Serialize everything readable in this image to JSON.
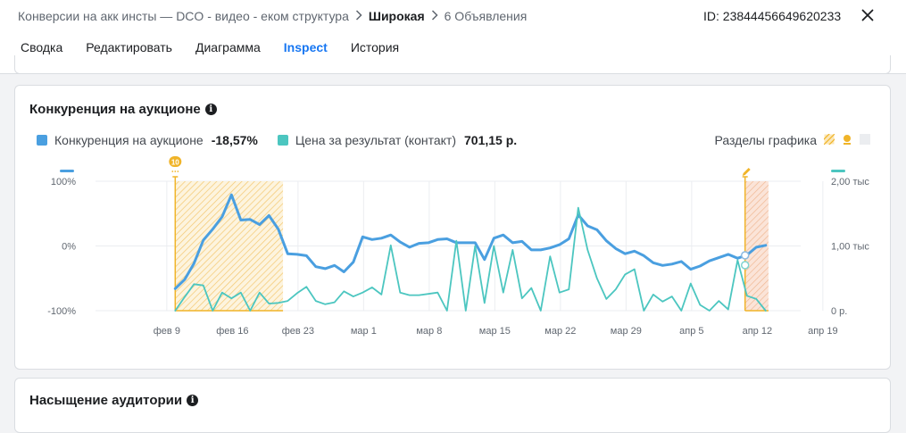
{
  "header": {
    "breadcrumb": {
      "campaign": "Конверсии на акк инсты — DCO - видео - еком структура",
      "adset": "Широкая",
      "ads": "6 Объявления"
    },
    "ad_id": "ID: 23844456649620233"
  },
  "tabs": [
    {
      "label": "Сводка",
      "active": false
    },
    {
      "label": "Редактировать",
      "active": false
    },
    {
      "label": "Диаграмма",
      "active": false
    },
    {
      "label": "Inspect",
      "active": true
    },
    {
      "label": "История",
      "active": false
    }
  ],
  "auction_card": {
    "title": "Конкуренция на аукционе",
    "legend": [
      {
        "label": "Конкуренция на аукционе",
        "value": "-18,57%",
        "color": "#4a9fe0"
      },
      {
        "label": "Цена за результат (контакт)",
        "value": "701,15 р.",
        "color": "#4cc6c0"
      }
    ],
    "sections_label": "Разделы графика",
    "marker_badge": "10"
  },
  "audience_card": {
    "title": "Насыщение аудитории"
  },
  "chart_data": {
    "type": "line",
    "x_tick_labels": [
      "фев 9",
      "фев 16",
      "фев 23",
      "мар 1",
      "мар 8",
      "мар 15",
      "мар 22",
      "мар 29",
      "апр 5",
      "апр 12",
      "апр 19"
    ],
    "y_left": {
      "ticks": [
        "100%",
        "0%",
        "-100%"
      ],
      "range": [
        -100,
        100
      ]
    },
    "y_right": {
      "ticks": [
        "2,00 тыс",
        "1,00 тыс",
        "0 р."
      ],
      "range": [
        0,
        2000
      ]
    },
    "x_range_days": [
      0,
      70
    ],
    "highlights": [
      {
        "from": 5,
        "to": 16.5,
        "style": "hatched-yellow"
      },
      {
        "from": 65.8,
        "to": 68.3,
        "style": "hatched-orange"
      }
    ],
    "series": [
      {
        "name": "Конкуренция на аукционе",
        "axis": "left",
        "color": "#4a9fe0",
        "x": [
          5,
          6,
          7,
          8,
          9,
          10,
          11,
          12,
          13,
          14,
          15,
          16,
          17,
          18,
          19,
          20,
          21,
          22,
          23,
          24,
          25,
          26,
          27,
          28,
          29,
          30,
          31,
          32,
          33,
          34,
          35,
          36,
          37,
          38,
          39,
          40,
          41,
          42,
          43,
          44,
          45,
          46,
          47,
          48,
          49,
          50,
          51,
          52,
          53,
          54,
          55,
          56,
          57,
          58,
          59,
          60,
          61,
          62,
          63,
          64,
          65,
          66,
          67,
          68
        ],
        "values": [
          -66,
          -52,
          -27,
          9,
          26,
          45,
          79,
          40,
          41,
          33,
          47,
          26,
          -12,
          -13,
          -15,
          -32,
          -35,
          -30,
          -40,
          -25,
          14,
          10,
          12,
          17,
          6,
          -2,
          4,
          5,
          10,
          11,
          5,
          5,
          5,
          -21,
          12,
          17,
          5,
          7,
          -6,
          -6,
          -3,
          2,
          11,
          48,
          31,
          25,
          8,
          -4,
          -12,
          -8,
          -15,
          -26,
          -30,
          -28,
          -24,
          -36,
          -31,
          -23,
          -18,
          -13,
          -19,
          -14,
          -2,
          1
        ],
        "labels": []
      },
      {
        "name": "Цена за результат (контакт)",
        "axis": "right",
        "color": "#4cc6c0",
        "x": [
          5,
          6,
          7,
          8,
          9,
          10,
          11,
          12,
          13,
          14,
          15,
          16,
          17,
          18,
          19,
          20,
          21,
          22,
          23,
          24,
          25,
          26,
          27,
          28,
          29,
          30,
          31,
          32,
          33,
          34,
          35,
          36,
          37,
          38,
          39,
          40,
          41,
          42,
          43,
          44,
          45,
          46,
          47,
          48,
          49,
          50,
          51,
          52,
          53,
          54,
          55,
          56,
          57,
          58,
          59,
          60,
          61,
          62,
          63,
          64,
          65,
          66,
          67,
          68
        ],
        "values": [
          0,
          210,
          410,
          390,
          0,
          280,
          190,
          280,
          0,
          280,
          110,
          120,
          150,
          270,
          370,
          150,
          100,
          130,
          300,
          220,
          280,
          360,
          250,
          1010,
          280,
          240,
          240,
          260,
          280,
          0,
          1080,
          0,
          1000,
          120,
          1000,
          280,
          940,
          190,
          350,
          0,
          840,
          280,
          330,
          1590,
          940,
          500,
          180,
          330,
          560,
          640,
          0,
          250,
          140,
          220,
          0,
          420,
          90,
          0,
          150,
          20,
          780,
          230,
          180,
          0
        ],
        "labels": []
      }
    ]
  }
}
